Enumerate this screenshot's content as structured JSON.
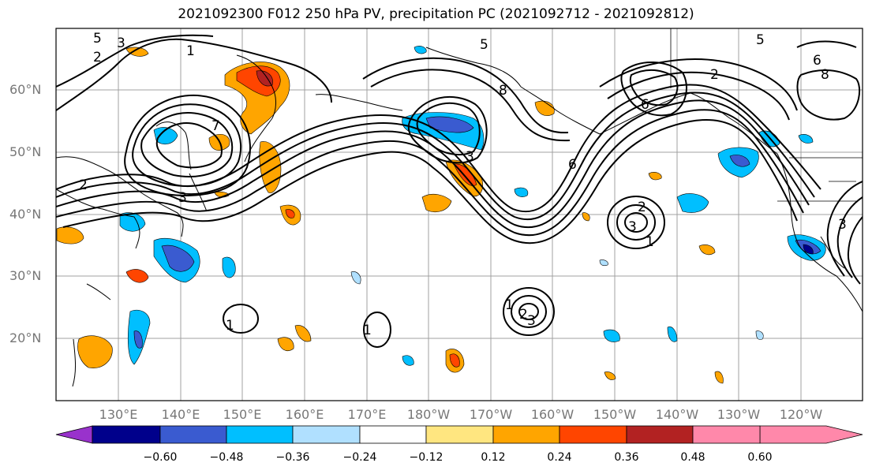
{
  "title": "2021092300 F012 250 hPa PV, precipitation PC (2021092712 - 2021092812)",
  "lat_labels": [
    "60°N",
    "50°N",
    "40°N",
    "30°N",
    "20°N"
  ],
  "lon_labels": [
    "130°E",
    "140°E",
    "150°E",
    "160°E",
    "170°E",
    "180°W",
    "170°W",
    "160°W",
    "150°W",
    "140°W",
    "130°W",
    "120°W"
  ],
  "colorbar": {
    "ticks": [
      "−0.60",
      "−0.48",
      "−0.36",
      "−0.24",
      "−0.12",
      "0.12",
      "0.24",
      "0.36",
      "0.48",
      "0.60"
    ],
    "colors": [
      "#9932cc",
      "#00008b",
      "#3a5bd0",
      "#00bfff",
      "#b0e0ff",
      "#ffffff",
      "#ffe680",
      "#ffa500",
      "#ff4500",
      "#b22222",
      "#ff88aa"
    ]
  },
  "contour_labels": [
    "1",
    "2",
    "3",
    "5",
    "6",
    "7",
    "8"
  ]
}
